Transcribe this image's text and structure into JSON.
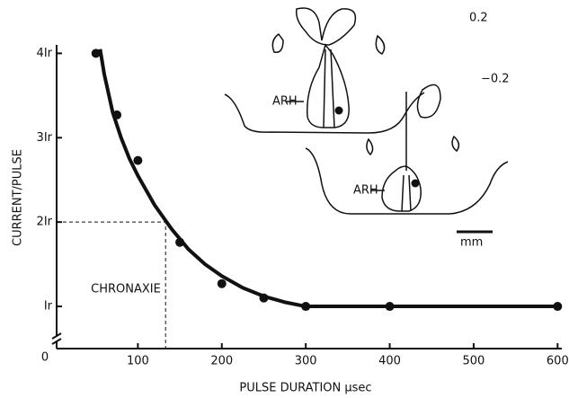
{
  "chart_data": {
    "type": "scatter",
    "x_label": "PULSE DURATION μsec",
    "y_label": "CURRENT/PULSE",
    "origin_label": "0",
    "x": [
      50,
      75,
      100,
      150,
      200,
      250,
      300,
      400,
      600
    ],
    "values": [
      4.0,
      3.27,
      2.73,
      1.76,
      1.27,
      1.1,
      1.0,
      1.0,
      1.0
    ],
    "color": "#111111",
    "fit": {
      "x": [
        55,
        60,
        70,
        80,
        90,
        100,
        120,
        140,
        160,
        180,
        200,
        225,
        250,
        275,
        300,
        400,
        600
      ],
      "values": [
        4.05,
        3.75,
        3.3,
        3.0,
        2.75,
        2.55,
        2.2,
        1.92,
        1.68,
        1.5,
        1.36,
        1.22,
        1.12,
        1.05,
        1.0,
        1.0,
        1.0
      ]
    },
    "chronaxie": {
      "label": "CHRONAXIE",
      "x": 133,
      "y": 2
    },
    "xlim": [
      0,
      605
    ],
    "xticks": [
      100,
      200,
      300,
      400,
      500,
      600
    ],
    "ylim": [
      0.5,
      4.1
    ],
    "yticks": [
      {
        "value": 1,
        "label": "Ir"
      },
      {
        "value": 2,
        "label": "2Ir"
      },
      {
        "value": 3,
        "label": "3Ir"
      },
      {
        "value": 4,
        "label": "4Ir"
      }
    ]
  },
  "inset": {
    "level_top": "0.2",
    "level_bottom": "−0.2",
    "label_top": "ARH",
    "label_bottom": "ARH",
    "scale": "mm"
  }
}
